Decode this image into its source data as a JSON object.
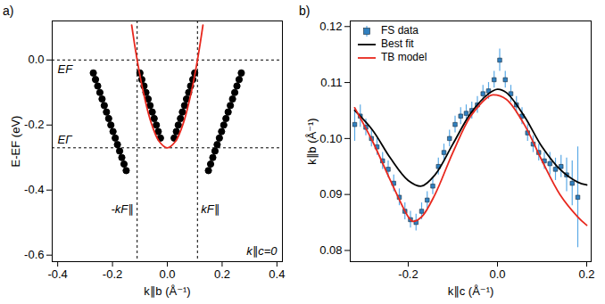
{
  "chart_data": [
    {
      "type": "scatter",
      "panel_label": "a)",
      "x_label": "k∥b (Å⁻¹)",
      "y_label": "E-EF (eV)",
      "xlim": [
        -0.42,
        0.42
      ],
      "ylim": [
        -0.62,
        0.12
      ],
      "xticks": [
        -0.4,
        -0.2,
        {
          "value": 0,
          "label": "0.0"
        },
        0.2,
        0.4
      ],
      "yticks": [
        -0.6,
        -0.4,
        -0.2,
        {
          "value": 0,
          "label": "0.0"
        }
      ],
      "reference_lines": [
        {
          "axis": "y",
          "value": 0,
          "label": "EF"
        },
        {
          "axis": "y",
          "value": -0.27,
          "label": "EΓ"
        },
        {
          "axis": "x",
          "value": -0.11,
          "label": "-kF∥"
        },
        {
          "axis": "x",
          "value": 0.11,
          "label": "kF∥"
        }
      ],
      "annotation": "k∥c=0",
      "series": [
        {
          "type": "scatter",
          "marker": "circle",
          "color": "#000000",
          "x": [
            0.27,
            0.262,
            0.254,
            0.246,
            0.238,
            0.23,
            0.222,
            0.214,
            0.206,
            0.198,
            0.19,
            0.182,
            0.174,
            0.166,
            0.158,
            0.15,
            -0.27,
            -0.262,
            -0.254,
            -0.246,
            -0.238,
            -0.23,
            -0.222,
            -0.214,
            -0.206,
            -0.198,
            -0.19,
            -0.182,
            -0.174,
            -0.166,
            -0.158,
            -0.15,
            0.1,
            0.093,
            0.085,
            0.078,
            0.07,
            0.063,
            0.055,
            0.048,
            0.04,
            0.033,
            0.025,
            -0.1,
            -0.093,
            -0.085,
            -0.078,
            -0.07,
            -0.063,
            -0.055,
            -0.048,
            -0.04,
            -0.033,
            -0.025
          ],
          "y": [
            -0.04,
            -0.06,
            -0.08,
            -0.1,
            -0.12,
            -0.14,
            -0.16,
            -0.18,
            -0.2,
            -0.22,
            -0.24,
            -0.26,
            -0.28,
            -0.3,
            -0.32,
            -0.34,
            -0.04,
            -0.06,
            -0.08,
            -0.1,
            -0.12,
            -0.14,
            -0.16,
            -0.18,
            -0.2,
            -0.22,
            -0.24,
            -0.26,
            -0.28,
            -0.3,
            -0.32,
            -0.34,
            -0.04,
            -0.06,
            -0.08,
            -0.1,
            -0.12,
            -0.14,
            -0.16,
            -0.18,
            -0.2,
            -0.22,
            -0.24,
            -0.04,
            -0.06,
            -0.08,
            -0.1,
            -0.12,
            -0.14,
            -0.16,
            -0.18,
            -0.2,
            -0.22,
            -0.24
          ]
        },
        {
          "type": "line",
          "line_style": "solid",
          "color": "#e8281e",
          "x": [
            -0.13,
            -0.12,
            -0.11,
            -0.09,
            -0.06,
            -0.03,
            0,
            0.03,
            0.06,
            0.09,
            0.11,
            0.12,
            0.13
          ],
          "y": [
            0.107,
            0.051,
            0,
            -0.089,
            -0.19,
            -0.25,
            -0.27,
            -0.25,
            -0.19,
            -0.089,
            0,
            0.051,
            0.107
          ]
        }
      ]
    },
    {
      "type": "scatter",
      "panel_label": "b)",
      "x_label": "k∥c (Å⁻¹)",
      "y_label": "k∥b (Å⁻¹)",
      "xlim": [
        -0.33,
        0.21
      ],
      "ylim": [
        0.078,
        0.121
      ],
      "xticks": [
        -0.2,
        {
          "value": 0,
          "label": "0.0"
        },
        0.2
      ],
      "yticks": [
        0.08,
        0.09,
        {
          "value": 0.1,
          "label": "0.10"
        },
        0.11,
        0.12
      ],
      "legend": "upper left",
      "series": [
        {
          "name": "FS data",
          "type": "scatter",
          "marker": "square",
          "color": "#2f80c0",
          "x": [
            -0.32,
            -0.3075,
            -0.295,
            -0.2825,
            -0.27,
            -0.2575,
            -0.245,
            -0.2325,
            -0.22,
            -0.2075,
            -0.195,
            -0.1825,
            -0.17,
            -0.1575,
            -0.145,
            -0.1325,
            -0.12,
            -0.1075,
            -0.095,
            -0.0825,
            -0.07,
            -0.0575,
            -0.045,
            -0.0325,
            -0.02,
            -0.0075,
            0.005,
            0.0175,
            0.03,
            0.0425,
            0.055,
            0.0675,
            0.08,
            0.0925,
            0.105,
            0.1175,
            0.13,
            0.1425,
            0.155,
            0.1675,
            0.18
          ],
          "y": [
            0.1025,
            0.104,
            0.102,
            0.1,
            0.0985,
            0.096,
            0.0945,
            0.092,
            0.0895,
            0.087,
            0.0855,
            0.085,
            0.087,
            0.089,
            0.0915,
            0.095,
            0.0975,
            0.1,
            0.1025,
            0.104,
            0.1045,
            0.105,
            0.106,
            0.108,
            0.1085,
            0.1105,
            0.114,
            0.1105,
            0.108,
            0.106,
            0.104,
            0.101,
            0.099,
            0.0975,
            0.096,
            0.0955,
            0.0945,
            0.095,
            0.0935,
            0.092,
            0.0895
          ],
          "error": [
            0.003,
            0.002,
            0.0015,
            0.0015,
            0.0015,
            0.0015,
            0.0015,
            0.0015,
            0.0015,
            0.0015,
            0.0015,
            0.0015,
            0.0015,
            0.0015,
            0.0015,
            0.0015,
            0.0015,
            0.0015,
            0.0015,
            0.0015,
            0.0015,
            0.0015,
            0.0015,
            0.0015,
            0.0015,
            0.0015,
            0.002,
            0.0015,
            0.0015,
            0.0015,
            0.0015,
            0.0015,
            0.0015,
            0.0015,
            0.0015,
            0.002,
            0.002,
            0.002,
            0.003,
            0.004,
            0.009
          ]
        },
        {
          "name": "Best fit",
          "type": "line",
          "line_style": "solid",
          "color": "#000000",
          "x": [
            -0.32,
            -0.28,
            -0.24,
            -0.2,
            -0.17,
            -0.14,
            -0.1,
            -0.06,
            -0.02,
            0,
            0.02,
            0.06,
            0.1,
            0.14,
            0.18,
            0.2
          ],
          "y": [
            0.105,
            0.1015,
            0.0965,
            0.0925,
            0.0915,
            0.0935,
            0.099,
            0.1045,
            0.108,
            0.1088,
            0.1082,
            0.104,
            0.0985,
            0.0945,
            0.0922,
            0.0917
          ]
        },
        {
          "name": "TB model",
          "type": "line",
          "line_style": "solid",
          "color": "#e8281e",
          "x": [
            -0.32,
            -0.28,
            -0.24,
            -0.2,
            -0.19,
            -0.17,
            -0.14,
            -0.1,
            -0.06,
            -0.02,
            -0.01,
            0.02,
            0.06,
            0.1,
            0.14,
            0.18,
            0.2
          ],
          "y": [
            0.1055,
            0.0995,
            0.0925,
            0.086,
            0.0852,
            0.086,
            0.09,
            0.0975,
            0.104,
            0.1075,
            0.1078,
            0.107,
            0.1025,
            0.096,
            0.09,
            0.086,
            0.0845
          ]
        }
      ]
    }
  ]
}
